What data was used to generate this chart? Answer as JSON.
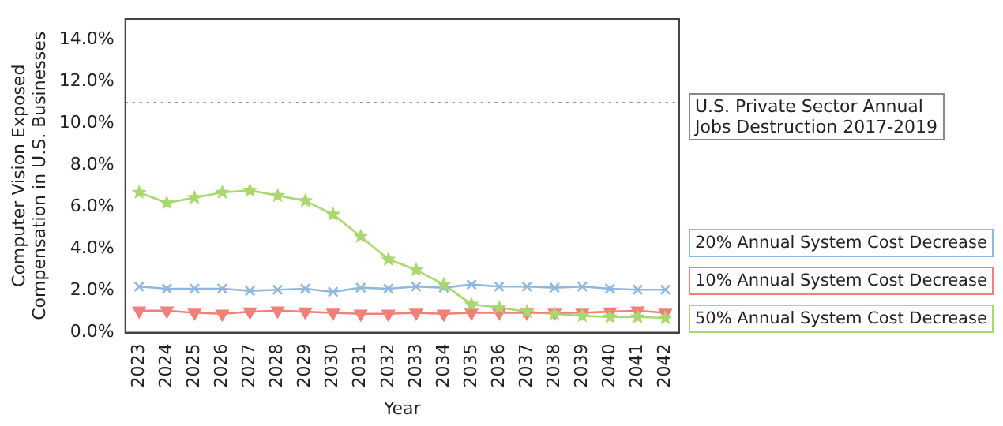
{
  "chart_data": {
    "type": "line",
    "xlabel": "Year",
    "ylabel": "Computer Vision Exposed\nCompensation in U.S. Businesses",
    "categories": [
      "2023",
      "2024",
      "2025",
      "2026",
      "2027",
      "2028",
      "2029",
      "2030",
      "2031",
      "2032",
      "2033",
      "2034",
      "2035",
      "2036",
      "2037",
      "2038",
      "2039",
      "2040",
      "2041",
      "2042"
    ],
    "series": [
      {
        "name": "20% Annual System Cost Decrease",
        "color": "#8fb8de",
        "marker": "cross",
        "values": [
          2.2,
          2.1,
          2.1,
          2.1,
          2.0,
          2.05,
          2.1,
          1.95,
          2.15,
          2.1,
          2.2,
          2.15,
          2.3,
          2.2,
          2.2,
          2.15,
          2.2,
          2.1,
          2.05,
          2.05
        ]
      },
      {
        "name": "10% Annual System Cost Decrease",
        "color": "#f08078",
        "marker": "triangle",
        "values": [
          1.05,
          1.05,
          0.95,
          0.9,
          1.0,
          1.05,
          1.0,
          0.95,
          0.9,
          0.9,
          0.95,
          0.9,
          0.95,
          0.95,
          0.95,
          0.95,
          0.95,
          1.0,
          1.05,
          0.95
        ]
      },
      {
        "name": "50% Annual System Cost Decrease",
        "color": "#a8d86e",
        "marker": "star",
        "values": [
          6.7,
          6.2,
          6.45,
          6.7,
          6.8,
          6.55,
          6.3,
          5.65,
          4.6,
          3.5,
          3.0,
          2.3,
          1.35,
          1.2,
          1.0,
          0.9,
          0.8,
          0.75,
          0.75,
          0.7
        ]
      }
    ],
    "ylim": [
      0,
      15
    ],
    "yticks": [
      {
        "value": 0,
        "label": "0.0%"
      },
      {
        "value": 2,
        "label": "2.0%"
      },
      {
        "value": 4,
        "label": "4.0%"
      },
      {
        "value": 6,
        "label": "6.0%"
      },
      {
        "value": 8,
        "label": "8.0%"
      },
      {
        "value": 10,
        "label": "10.0%"
      },
      {
        "value": 12,
        "label": "12.0%"
      },
      {
        "value": 14,
        "label": "14.0%"
      }
    ],
    "ref_lines": [
      {
        "axis": "y",
        "value": 11.0,
        "label": "U.S. Private Sector Annual\nJobs Destruction 2017-2019",
        "color": "#888888",
        "line_style": "dotted"
      }
    ],
    "grid": false,
    "legend": "right"
  }
}
